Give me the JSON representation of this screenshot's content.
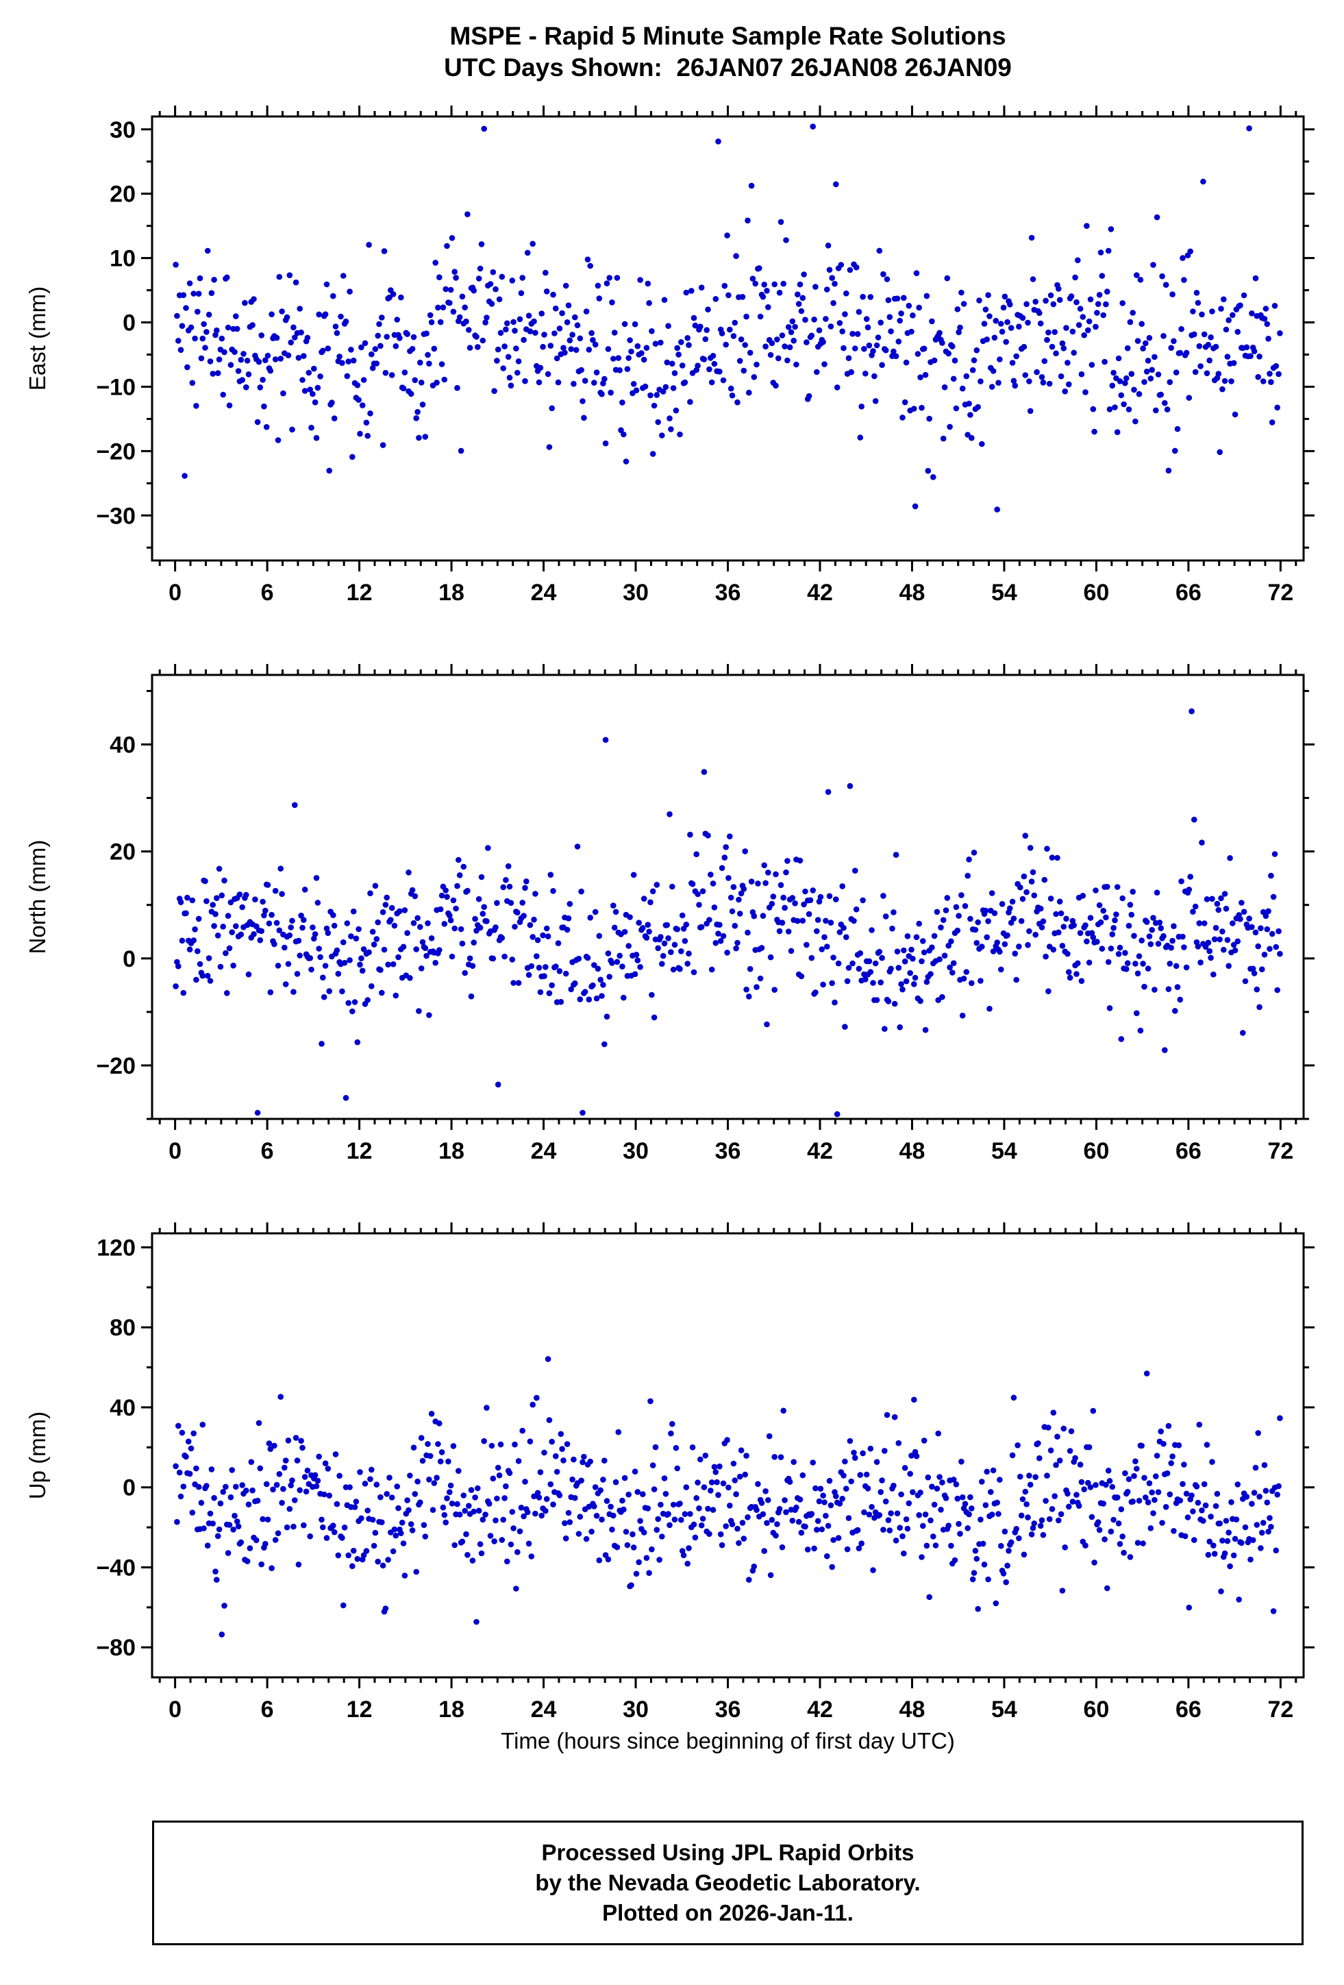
{
  "title": {
    "line1": "MSPE - Rapid 5 Minute Sample Rate Solutions",
    "line2": "UTC Days Shown:  26JAN07 26JAN08 26JAN09"
  },
  "axes": {
    "xlabel": "Time (hours since beginning of first day UTC)"
  },
  "footer": {
    "line1": "Processed Using JPL Rapid Orbits",
    "line2": "by the Nevada Geodetic Laboratory.",
    "line3": "Plotted on 2026-Jan-11."
  },
  "style": {
    "point_color": "#0000CC",
    "frame_color": "#000000",
    "background": "#ffffff"
  },
  "chart_data": [
    {
      "type": "scatter",
      "ylabel": "East (mm)",
      "xlim": [
        -1.5,
        73.5
      ],
      "ylim": [
        -37,
        32
      ],
      "xticks": [
        0,
        6,
        12,
        18,
        24,
        30,
        36,
        42,
        48,
        54,
        60,
        66,
        72
      ],
      "x_minor": 1,
      "yticks": [
        30,
        20,
        10,
        0,
        -10,
        -20,
        -30
      ],
      "y_minor": 5,
      "n_points": 864,
      "sample_minutes": 5,
      "seed": 7,
      "mean": -3,
      "std": 6,
      "wander": 6.5,
      "outlier_prob": 0.05,
      "outlier_scale": 3.2
    },
    {
      "type": "scatter",
      "ylabel": "North (mm)",
      "xlim": [
        -1.5,
        73.5
      ],
      "ylim": [
        -30,
        53
      ],
      "xticks": [
        0,
        6,
        12,
        18,
        24,
        30,
        36,
        42,
        48,
        54,
        60,
        66,
        72
      ],
      "x_minor": 1,
      "yticks": [
        40,
        20,
        0,
        -20
      ],
      "y_minor": 10,
      "n_points": 864,
      "sample_minutes": 5,
      "seed": 13,
      "mean": 4,
      "std": 6,
      "wander": 6.5,
      "outlier_prob": 0.05,
      "outlier_scale": 3.2
    },
    {
      "type": "scatter",
      "ylabel": "Up (mm)",
      "xlim": [
        -1.5,
        73.5
      ],
      "ylim": [
        -95,
        127
      ],
      "xticks": [
        0,
        6,
        12,
        18,
        24,
        30,
        36,
        42,
        48,
        54,
        60,
        66,
        72
      ],
      "x_minor": 1,
      "yticks": [
        120,
        80,
        40,
        0,
        -40,
        -80
      ],
      "y_minor": 20,
      "n_points": 864,
      "sample_minutes": 5,
      "seed": 29,
      "mean": -8,
      "std": 17,
      "wander": 17,
      "outlier_prob": 0.05,
      "outlier_scale": 2.6
    }
  ]
}
